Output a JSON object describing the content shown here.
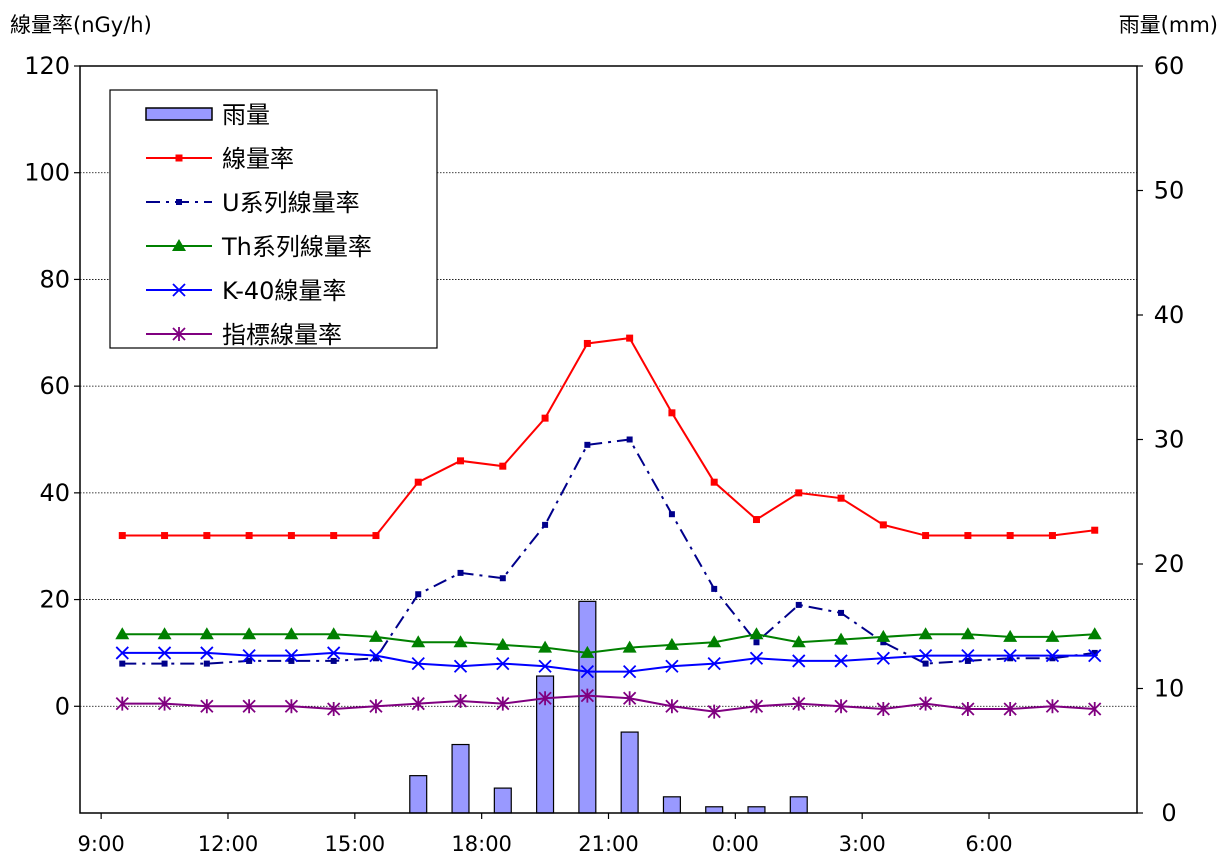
{
  "chart_data": {
    "type": "line",
    "ylabel": "線量率(nGy/h)",
    "y2label": "雨量(mm)",
    "ylim": [
      -20,
      120
    ],
    "y2lim": [
      0,
      60
    ],
    "yticks": [
      0,
      20,
      40,
      60,
      80,
      100,
      120
    ],
    "y2ticks": [
      0,
      10,
      20,
      30,
      40,
      50,
      60
    ],
    "x": [
      "9:00",
      "10:00",
      "11:00",
      "12:00",
      "13:00",
      "14:00",
      "15:00",
      "16:00",
      "17:00",
      "18:00",
      "19:00",
      "20:00",
      "21:00",
      "22:00",
      "23:00",
      "0:00",
      "1:00",
      "2:00",
      "3:00",
      "4:00",
      "5:00",
      "6:00",
      "7:00",
      "8:00"
    ],
    "xtick_labels": [
      "9:00",
      "12:00",
      "15:00",
      "18:00",
      "21:00",
      "0:00",
      "3:00",
      "6:00"
    ],
    "grid": "horizontal dotted",
    "legend": "top-left",
    "series": [
      {
        "name": "雨量",
        "kind": "bar",
        "axis": "right",
        "color": "#9999ff",
        "values": [
          null,
          null,
          null,
          null,
          null,
          null,
          null,
          3,
          5.5,
          2,
          11,
          17,
          6.5,
          1.3,
          0.5,
          0.5,
          1.3,
          null,
          null,
          null,
          null,
          null,
          null,
          null
        ]
      },
      {
        "name": "線量率",
        "kind": "line",
        "marker": "square",
        "color": "#ff0000",
        "dash": "solid",
        "values": [
          32,
          32,
          32,
          32,
          32,
          32,
          32,
          42,
          46,
          45,
          54,
          68,
          69,
          55,
          42,
          35,
          40,
          39,
          34,
          32,
          32,
          32,
          32,
          33
        ]
      },
      {
        "name": "U系列線量率",
        "kind": "line",
        "marker": "smallsquare",
        "color": "#00008b",
        "dash": "dashdot",
        "values": [
          8,
          8,
          8,
          8.5,
          8.5,
          8.5,
          9,
          21,
          25,
          24,
          34,
          49,
          50,
          36,
          22,
          12,
          19,
          17.5,
          12,
          8,
          8.5,
          9,
          9,
          10
        ]
      },
      {
        "name": "Th系列線量率",
        "kind": "line",
        "marker": "triangle",
        "color": "#008000",
        "dash": "solid",
        "values": [
          13.5,
          13.5,
          13.5,
          13.5,
          13.5,
          13.5,
          13,
          12,
          12,
          11.5,
          11,
          10,
          11,
          11.5,
          12,
          13.5,
          12,
          12.5,
          13,
          13.5,
          13.5,
          13,
          13,
          13.5
        ]
      },
      {
        "name": "K-40線量率",
        "kind": "line",
        "marker": "x",
        "color": "#0000ff",
        "dash": "solid",
        "values": [
          10,
          10,
          10,
          9.5,
          9.5,
          10,
          9.5,
          8,
          7.5,
          8,
          7.5,
          6.5,
          6.5,
          7.5,
          8,
          9,
          8.5,
          8.5,
          9,
          9.5,
          9.5,
          9.5,
          9.5,
          9.5
        ]
      },
      {
        "name": "指標線量率",
        "kind": "line",
        "marker": "star",
        "color": "#800080",
        "dash": "solid",
        "values": [
          0.5,
          0.5,
          0,
          0,
          0,
          -0.5,
          0,
          0.5,
          1,
          0.5,
          1.5,
          2,
          1.5,
          0,
          -1,
          0,
          0.5,
          0,
          -0.5,
          0.5,
          -0.5,
          -0.5,
          0,
          -0.5
        ]
      }
    ]
  }
}
